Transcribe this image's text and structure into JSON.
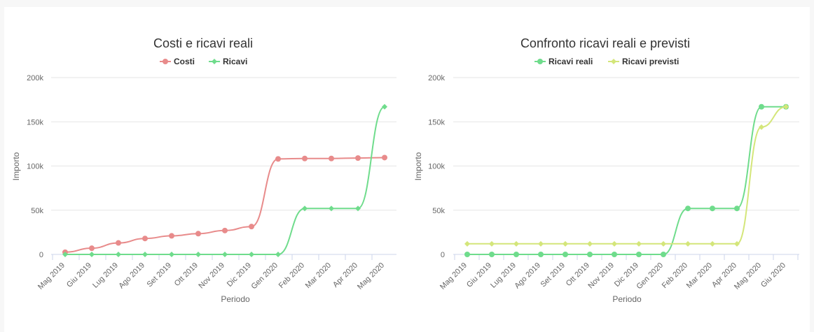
{
  "chart_data": [
    {
      "type": "line",
      "title": "Costi e ricavi reali",
      "xlabel": "Periodo",
      "ylabel": "Importo",
      "categories": [
        "Mag 2019",
        "Giu 2019",
        "Lug 2019",
        "Ago 2019",
        "Set 2019",
        "Ott 2019",
        "Nov 2019",
        "Dic 2019",
        "Gen 2020",
        "Feb 2020",
        "Mar 2020",
        "Apr 2020",
        "Mag 2020"
      ],
      "ylim": [
        0,
        200000
      ],
      "yticks": [
        "0",
        "50k",
        "100k",
        "150k",
        "200k"
      ],
      "grid": true,
      "legend_position": "top",
      "series": [
        {
          "name": "Costi",
          "color": "#e88b8b",
          "marker": "circle",
          "values": [
            2500,
            7000,
            13000,
            18000,
            21000,
            23500,
            27000,
            31500,
            108000,
            108500,
            108500,
            109000,
            109500
          ]
        },
        {
          "name": "Ricavi",
          "color": "#6fdc8c",
          "marker": "diamond",
          "values": [
            0,
            0,
            0,
            0,
            0,
            0,
            0,
            0,
            0,
            52000,
            52000,
            52000,
            167000
          ]
        }
      ]
    },
    {
      "type": "line",
      "title": "Confronto ricavi reali e previsti",
      "xlabel": "Periodo",
      "ylabel": "Importo",
      "categories": [
        "Mag 2019",
        "Giu 2019",
        "Lug 2019",
        "Ago 2019",
        "Set 2019",
        "Ott 2019",
        "Nov 2019",
        "Dic 2019",
        "Gen 2020",
        "Feb 2020",
        "Mar 2020",
        "Apr 2020",
        "Mag 2020",
        "Giu 2020"
      ],
      "ylim": [
        0,
        200000
      ],
      "yticks": [
        "0",
        "50k",
        "100k",
        "150k",
        "200k"
      ],
      "grid": true,
      "legend_position": "top",
      "series": [
        {
          "name": "Ricavi reali",
          "color": "#6fdc8c",
          "marker": "circle",
          "values": [
            0,
            0,
            0,
            0,
            0,
            0,
            0,
            0,
            0,
            52000,
            52000,
            52000,
            167000,
            167000
          ]
        },
        {
          "name": "Ricavi previsti",
          "color": "#d4e67a",
          "marker": "diamond",
          "values": [
            12000,
            12000,
            12000,
            12000,
            12000,
            12000,
            12000,
            12000,
            12000,
            12000,
            12000,
            12000,
            144000,
            167000
          ]
        }
      ]
    }
  ]
}
